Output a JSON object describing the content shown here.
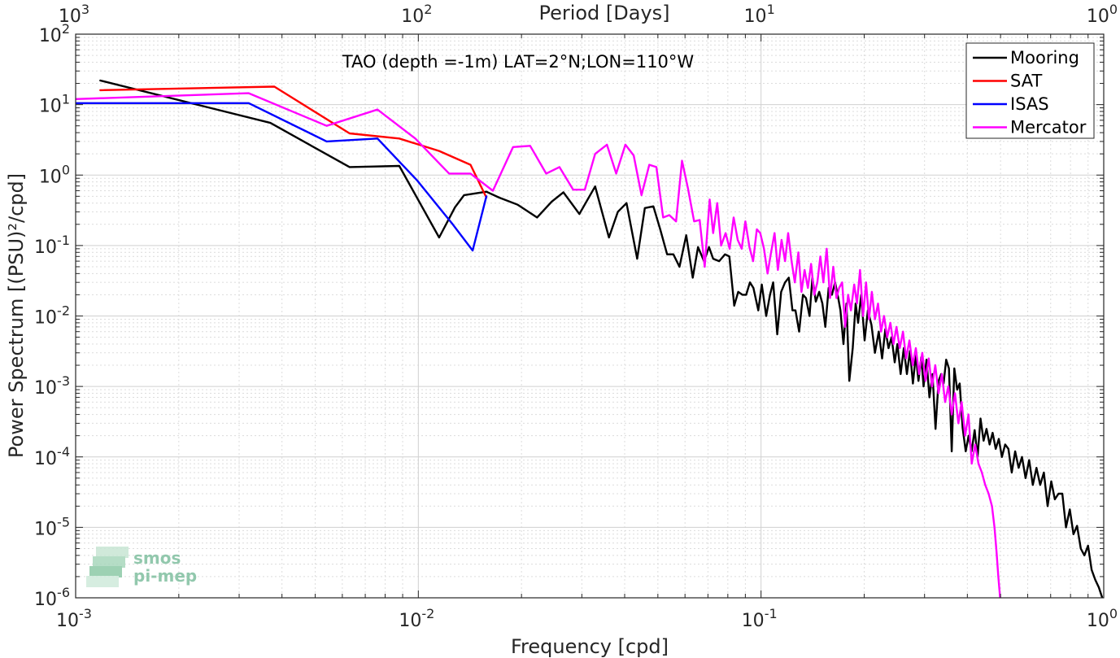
{
  "chart_data": {
    "type": "line",
    "title": "TAO (depth =-1m) LAT=2°N;LON=110°W",
    "xlabel": "Frequency [cpd]",
    "ylabel": "Power Spectrum [(PSU)²/cpd]",
    "x2label": "Period [Days]",
    "xscale": "log",
    "yscale": "log",
    "xlim": [
      0.001,
      1
    ],
    "ylim": [
      1e-06,
      100
    ],
    "grid": true,
    "legend_position": "top-right",
    "x_ticks": [
      {
        "value": 0.001,
        "base": "10",
        "exp": "-3"
      },
      {
        "value": 0.01,
        "base": "10",
        "exp": "-2"
      },
      {
        "value": 0.1,
        "base": "10",
        "exp": "-1"
      },
      {
        "value": 1,
        "base": "10",
        "exp": "0"
      }
    ],
    "y_ticks": [
      {
        "value": 100,
        "base": "10",
        "exp": "2"
      },
      {
        "value": 10,
        "base": "10",
        "exp": "1"
      },
      {
        "value": 1,
        "base": "10",
        "exp": "0"
      },
      {
        "value": 0.1,
        "base": "10",
        "exp": "-1"
      },
      {
        "value": 0.01,
        "base": "10",
        "exp": "-2"
      },
      {
        "value": 0.001,
        "base": "10",
        "exp": "-3"
      },
      {
        "value": 0.0001,
        "base": "10",
        "exp": "-4"
      },
      {
        "value": 1e-05,
        "base": "10",
        "exp": "-5"
      },
      {
        "value": 1e-06,
        "base": "10",
        "exp": "-6"
      }
    ],
    "period_ticks": [
      {
        "frequency": 0.001,
        "base": "10",
        "exp": "3"
      },
      {
        "frequency": 0.01,
        "base": "10",
        "exp": "2"
      },
      {
        "frequency": 0.1,
        "base": "10",
        "exp": "1"
      },
      {
        "frequency": 1,
        "base": "10",
        "exp": "0"
      }
    ],
    "series": [
      {
        "name": "Mooring",
        "color": "#000000",
        "points": [
          [
            0.00118,
            22
          ],
          [
            0.0037,
            5.5
          ],
          [
            0.0063,
            1.3
          ],
          [
            0.0088,
            1.35
          ],
          [
            0.0115,
            0.13
          ],
          [
            0.0128,
            0.35
          ],
          [
            0.0136,
            0.52
          ],
          [
            0.0158,
            0.58
          ],
          [
            0.0172,
            0.48
          ],
          [
            0.0195,
            0.38
          ],
          [
            0.0222,
            0.25
          ],
          [
            0.0245,
            0.42
          ],
          [
            0.0265,
            0.57
          ],
          [
            0.0295,
            0.28
          ],
          [
            0.0328,
            0.69
          ],
          [
            0.036,
            0.13
          ],
          [
            0.0382,
            0.3
          ],
          [
            0.0405,
            0.4
          ],
          [
            0.0435,
            0.065
          ],
          [
            0.0458,
            0.34
          ],
          [
            0.0485,
            0.36
          ],
          [
            0.0508,
            0.17
          ],
          [
            0.0532,
            0.075
          ],
          [
            0.0555,
            0.075
          ],
          [
            0.0578,
            0.05
          ],
          [
            0.0605,
            0.14
          ],
          [
            0.0632,
            0.035
          ],
          [
            0.0655,
            0.095
          ],
          [
            0.0682,
            0.06
          ],
          [
            0.0705,
            0.095
          ],
          [
            0.0725,
            0.065
          ],
          [
            0.0755,
            0.06
          ],
          [
            0.0785,
            0.075
          ],
          [
            0.0808,
            0.07
          ],
          [
            0.0835,
            0.014
          ],
          [
            0.0858,
            0.022
          ],
          [
            0.0882,
            0.02
          ],
          [
            0.0905,
            0.02
          ],
          [
            0.0928,
            0.03
          ],
          [
            0.095,
            0.025
          ],
          [
            0.0982,
            0.012
          ],
          [
            0.1005,
            0.028
          ],
          [
            0.1035,
            0.01
          ],
          [
            0.1062,
            0.02
          ],
          [
            0.1085,
            0.03
          ],
          [
            0.1115,
            0.0055
          ],
          [
            0.1145,
            0.022
          ],
          [
            0.1175,
            0.03
          ],
          [
            0.1205,
            0.035
          ],
          [
            0.1235,
            0.012
          ],
          [
            0.126,
            0.012
          ],
          [
            0.1292,
            0.006
          ],
          [
            0.1325,
            0.02
          ],
          [
            0.1352,
            0.018
          ],
          [
            0.1385,
            0.01
          ],
          [
            0.1412,
            0.035
          ],
          [
            0.1445,
            0.016
          ],
          [
            0.1478,
            0.022
          ],
          [
            0.151,
            0.015
          ],
          [
            0.154,
            0.007
          ],
          [
            0.1575,
            0.025
          ],
          [
            0.161,
            0.02
          ],
          [
            0.1645,
            0.03
          ],
          [
            0.168,
            0.018
          ],
          [
            0.1705,
            0.012
          ],
          [
            0.174,
            0.004
          ],
          [
            0.1775,
            0.015
          ],
          [
            0.181,
            0.0012
          ],
          [
            0.1852,
            0.0035
          ],
          [
            0.1888,
            0.015
          ],
          [
            0.192,
            0.008
          ],
          [
            0.196,
            0.02
          ],
          [
            0.2005,
            0.0045
          ],
          [
            0.205,
            0.012
          ],
          [
            0.21,
            0.0075
          ],
          [
            0.215,
            0.003
          ],
          [
            0.2205,
            0.006
          ],
          [
            0.2255,
            0.0025
          ],
          [
            0.2305,
            0.0065
          ],
          [
            0.2355,
            0.0035
          ],
          [
            0.2405,
            0.005
          ],
          [
            0.2455,
            0.0022
          ],
          [
            0.25,
            0.004
          ],
          [
            0.2555,
            0.0015
          ],
          [
            0.261,
            0.0035
          ],
          [
            0.2665,
            0.0015
          ],
          [
            0.272,
            0.0032
          ],
          [
            0.2775,
            0.0011
          ],
          [
            0.283,
            0.0028
          ],
          [
            0.288,
            0.0012
          ],
          [
            0.2935,
            0.0026
          ],
          [
            0.298,
            0.001
          ],
          [
            0.304,
            0.0024
          ],
          [
            0.31,
            0.0007
          ],
          [
            0.3165,
            0.0015
          ],
          [
            0.323,
            0.00025
          ],
          [
            0.3295,
            0.0012
          ],
          [
            0.3355,
            0.0015
          ],
          [
            0.341,
            0.0011
          ],
          [
            0.347,
            0.0024
          ],
          [
            0.3535,
            0.0018
          ],
          [
            0.36,
            0.00012
          ],
          [
            0.3665,
            0.0018
          ],
          [
            0.3735,
            0.0009
          ],
          [
            0.38,
            0.0011
          ],
          [
            0.3875,
            0.00026
          ],
          [
            0.3955,
            0.00012
          ],
          [
            0.4035,
            0.0002
          ],
          [
            0.4115,
            0.00012
          ],
          [
            0.42,
            0.00024
          ],
          [
            0.4285,
            0.0001
          ],
          [
            0.437,
            0.00035
          ],
          [
            0.446,
            0.00017
          ],
          [
            0.455,
            0.00025
          ],
          [
            0.4645,
            0.00015
          ],
          [
            0.474,
            0.00022
          ],
          [
            0.484,
            0.00013
          ],
          [
            0.494,
            0.00018
          ],
          [
            0.5045,
            0.0001
          ],
          [
            0.5155,
            0.00015
          ],
          [
            0.527,
            0.00013
          ],
          [
            0.539,
            6e-05
          ],
          [
            0.5515,
            0.00012
          ],
          [
            0.5645,
            7e-05
          ],
          [
            0.5775,
            0.0001
          ],
          [
            0.5915,
            5e-05
          ],
          [
            0.606,
            9e-05
          ],
          [
            0.621,
            4e-05
          ],
          [
            0.6365,
            7e-05
          ],
          [
            0.6525,
            4e-05
          ],
          [
            0.669,
            6e-05
          ],
          [
            0.686,
            2e-05
          ],
          [
            0.703,
            4.5e-05
          ],
          [
            0.72,
            2.5e-05
          ],
          [
            0.738,
            3e-05
          ],
          [
            0.757,
            3e-05
          ],
          [
            0.776,
            1e-05
          ],
          [
            0.796,
            1.8e-05
          ],
          [
            0.816,
            8e-06
          ],
          [
            0.836,
            1.05e-05
          ],
          [
            0.857,
            5e-06
          ],
          [
            0.878,
            4e-06
          ],
          [
            0.9,
            5.5e-06
          ],
          [
            0.922,
            2.5e-06
          ],
          [
            0.945,
            1.8e-06
          ],
          [
            0.968,
            1.4e-06
          ],
          [
            0.99,
            1e-06
          ]
        ]
      },
      {
        "name": "SAT",
        "color": "#ff0000",
        "points": [
          [
            0.00118,
            16
          ],
          [
            0.0038,
            18
          ],
          [
            0.0063,
            3.9
          ],
          [
            0.0088,
            3.3
          ],
          [
            0.0115,
            2.2
          ],
          [
            0.0142,
            1.4
          ],
          [
            0.0158,
            0.48
          ]
        ]
      },
      {
        "name": "ISAS",
        "color": "#0000ff",
        "points": [
          [
            0.001,
            10.5
          ],
          [
            0.0032,
            10.5
          ],
          [
            0.0054,
            3.0
          ],
          [
            0.0076,
            3.3
          ],
          [
            0.0099,
            0.85
          ],
          [
            0.0126,
            0.2
          ],
          [
            0.0144,
            0.085
          ],
          [
            0.0158,
            0.5
          ]
        ]
      },
      {
        "name": "Mercator",
        "color": "#ff00ff",
        "points": [
          [
            0.001,
            12
          ],
          [
            0.0032,
            14.5
          ],
          [
            0.0054,
            5.0
          ],
          [
            0.0076,
            8.5
          ],
          [
            0.0098,
            3.3
          ],
          [
            0.0123,
            1.05
          ],
          [
            0.0142,
            1.05
          ],
          [
            0.0165,
            0.6
          ],
          [
            0.0189,
            2.5
          ],
          [
            0.0212,
            2.6
          ],
          [
            0.0236,
            1.05
          ],
          [
            0.0258,
            1.3
          ],
          [
            0.0283,
            0.62
          ],
          [
            0.0306,
            0.62
          ],
          [
            0.0328,
            2.0
          ],
          [
            0.0355,
            2.7
          ],
          [
            0.0378,
            1.05
          ],
          [
            0.0402,
            2.7
          ],
          [
            0.0425,
            1.9
          ],
          [
            0.0448,
            0.52
          ],
          [
            0.0472,
            1.4
          ],
          [
            0.0495,
            1.3
          ],
          [
            0.0518,
            0.25
          ],
          [
            0.054,
            0.27
          ],
          [
            0.0565,
            0.22
          ],
          [
            0.0588,
            1.6
          ],
          [
            0.0612,
            0.65
          ],
          [
            0.0638,
            0.22
          ],
          [
            0.0662,
            0.23
          ],
          [
            0.0685,
            0.05
          ],
          [
            0.0708,
            0.45
          ],
          [
            0.0725,
            0.15
          ],
          [
            0.0745,
            0.4
          ],
          [
            0.0765,
            0.1
          ],
          [
            0.0788,
            0.15
          ],
          [
            0.081,
            0.09
          ],
          [
            0.0832,
            0.25
          ],
          [
            0.0855,
            0.12
          ],
          [
            0.0878,
            0.09
          ],
          [
            0.09,
            0.22
          ],
          [
            0.0925,
            0.095
          ],
          [
            0.0948,
            0.06
          ],
          [
            0.0972,
            0.17
          ],
          [
            0.0995,
            0.15
          ],
          [
            0.102,
            0.09
          ],
          [
            0.1045,
            0.04
          ],
          [
            0.107,
            0.08
          ],
          [
            0.1095,
            0.15
          ],
          [
            0.112,
            0.045
          ],
          [
            0.1148,
            0.12
          ],
          [
            0.1175,
            0.06
          ],
          [
            0.12,
            0.15
          ],
          [
            0.1228,
            0.06
          ],
          [
            0.1255,
            0.03
          ],
          [
            0.1285,
            0.08
          ],
          [
            0.1312,
            0.022
          ],
          [
            0.134,
            0.045
          ],
          [
            0.137,
            0.025
          ],
          [
            0.14,
            0.055
          ],
          [
            0.143,
            0.02
          ],
          [
            0.146,
            0.03
          ],
          [
            0.149,
            0.07
          ],
          [
            0.152,
            0.03
          ],
          [
            0.1555,
            0.09
          ],
          [
            0.159,
            0.018
          ],
          [
            0.1625,
            0.05
          ],
          [
            0.166,
            0.018
          ],
          [
            0.169,
            0.025
          ],
          [
            0.1725,
            0.03
          ],
          [
            0.176,
            0.007
          ],
          [
            0.1795,
            0.02
          ],
          [
            0.183,
            0.012
          ],
          [
            0.187,
            0.028
          ],
          [
            0.1905,
            0.015
          ],
          [
            0.1945,
            0.045
          ],
          [
            0.1985,
            0.01
          ],
          [
            0.2025,
            0.03
          ],
          [
            0.2065,
            0.009
          ],
          [
            0.2105,
            0.022
          ],
          [
            0.215,
            0.009
          ],
          [
            0.2195,
            0.015
          ],
          [
            0.224,
            0.006
          ],
          [
            0.2285,
            0.01
          ],
          [
            0.2335,
            0.005
          ],
          [
            0.2385,
            0.008
          ],
          [
            0.2435,
            0.004
          ],
          [
            0.2485,
            0.007
          ],
          [
            0.254,
            0.0035
          ],
          [
            0.2595,
            0.006
          ],
          [
            0.265,
            0.0025
          ],
          [
            0.271,
            0.0045
          ],
          [
            0.277,
            0.002
          ],
          [
            0.283,
            0.0035
          ],
          [
            0.289,
            0.0015
          ],
          [
            0.2955,
            0.003
          ],
          [
            0.302,
            0.0012
          ],
          [
            0.3085,
            0.0025
          ],
          [
            0.3155,
            0.001
          ],
          [
            0.3225,
            0.002
          ],
          [
            0.3295,
            0.0008
          ],
          [
            0.337,
            0.0015
          ],
          [
            0.3445,
            0.0006
          ],
          [
            0.352,
            0.001
          ],
          [
            0.36,
            0.0004
          ],
          [
            0.368,
            0.0008
          ],
          [
            0.3765,
            0.0003
          ],
          [
            0.385,
            0.0006
          ],
          [
            0.394,
            0.0002
          ],
          [
            0.403,
            0.0004
          ],
          [
            0.412,
            8e-05
          ],
          [
            0.4215,
            0.00015
          ],
          [
            0.431,
            8e-05
          ],
          [
            0.441,
            6e-05
          ],
          [
            0.451,
            4e-05
          ],
          [
            0.4615,
            3e-05
          ],
          [
            0.472,
            2e-05
          ],
          [
            0.48,
            1e-05
          ],
          [
            0.4865,
            4.5e-06
          ],
          [
            0.4925,
            2e-06
          ],
          [
            0.4985,
            1e-06
          ]
        ]
      }
    ]
  },
  "watermark": {
    "line1": "smos",
    "line2": "pi-mep"
  }
}
